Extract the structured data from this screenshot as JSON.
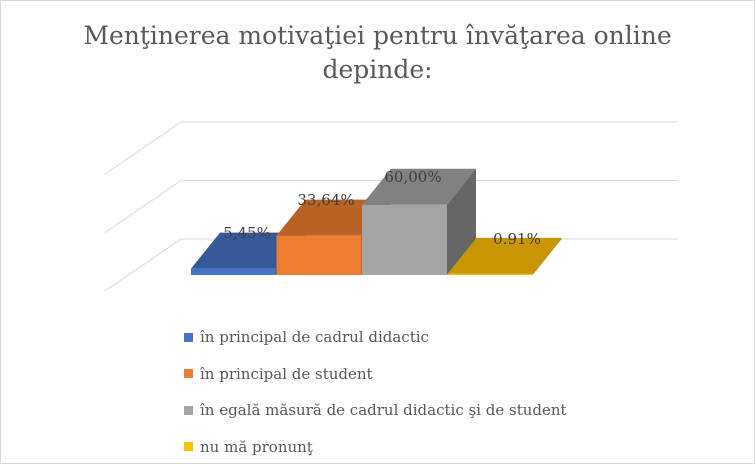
{
  "title": "Menţinerea motivaţiei pentru învăţarea online depinde:",
  "chart_data": {
    "type": "bar",
    "title": "Menţinerea motivaţiei pentru învăţarea online depinde:",
    "categories": [
      "în principal de cadrul didactic",
      "în principal de student",
      "în egală măsură de cadrul didactic şi de student",
      "nu mă pronunţ"
    ],
    "values": [
      5.45,
      33.64,
      60.0,
      0.91
    ],
    "data_labels": [
      "5,45%",
      "33,64%",
      "60,00%",
      "0.91%"
    ],
    "ylim": [
      0,
      100
    ],
    "grid": true,
    "legend_position": "bottom",
    "style": "3d",
    "colors": [
      "#4472c4",
      "#ed7d31",
      "#a5a5a5",
      "#ffc000"
    ]
  }
}
